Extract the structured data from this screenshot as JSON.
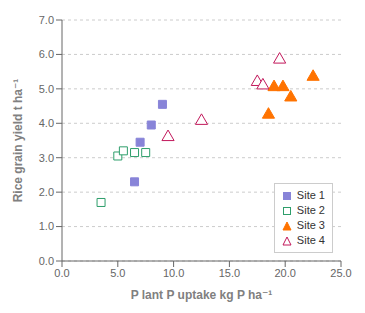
{
  "chart_data": {
    "type": "scatter",
    "xlabel": "P lant  P uptake  kg  P ha⁻¹",
    "ylabel": "Rice grain yield  t  ha⁻¹",
    "series": [
      {
        "name": "Site 1",
        "color": "#8884d8",
        "marker": "square",
        "x": [
          6.5,
          7.0,
          8.0,
          9.0
        ],
        "values": [
          2.3,
          3.45,
          3.95,
          4.55
        ]
      },
      {
        "name": "Site 2",
        "color": "#2e9e6b",
        "marker": "square-open",
        "x": [
          3.5,
          5.0,
          5.5,
          6.5,
          7.5
        ],
        "values": [
          1.7,
          3.05,
          3.2,
          3.15,
          3.15
        ]
      },
      {
        "name": "Site 3",
        "color": "#ff7300",
        "marker": "triangle",
        "x": [
          18.5,
          19.0,
          19.8,
          20.5,
          22.5
        ],
        "values": [
          4.25,
          5.05,
          5.05,
          4.75,
          5.35
        ]
      },
      {
        "name": "Site 4",
        "color": "#c2185b",
        "marker": "triangle-open",
        "x": [
          9.5,
          12.5,
          17.5,
          18.0,
          19.5
        ],
        "values": [
          3.6,
          4.07,
          5.2,
          5.1,
          5.85
        ]
      }
    ],
    "xlim": [
      0.0,
      25.0
    ],
    "ylim": [
      0.0,
      7.0
    ],
    "xticks": [
      {
        "value": 0,
        "label": "0.0"
      },
      {
        "value": 5,
        "label": "5.0"
      },
      {
        "value": 10,
        "label": "10.0"
      },
      {
        "value": 15,
        "label": "15.0"
      },
      {
        "value": 20,
        "label": "20.0"
      },
      {
        "value": 25,
        "label": "25.0"
      }
    ],
    "yticks": [
      {
        "value": 0,
        "label": "0.0"
      },
      {
        "value": 1,
        "label": "1.0"
      },
      {
        "value": 2,
        "label": "2.0"
      },
      {
        "value": 3,
        "label": "3.0"
      },
      {
        "value": 4,
        "label": "4.0"
      },
      {
        "value": 5,
        "label": "5.0"
      },
      {
        "value": 6,
        "label": "6.0"
      },
      {
        "value": 7,
        "label": "7.0"
      }
    ],
    "grid": "y",
    "legend": "lower right"
  }
}
